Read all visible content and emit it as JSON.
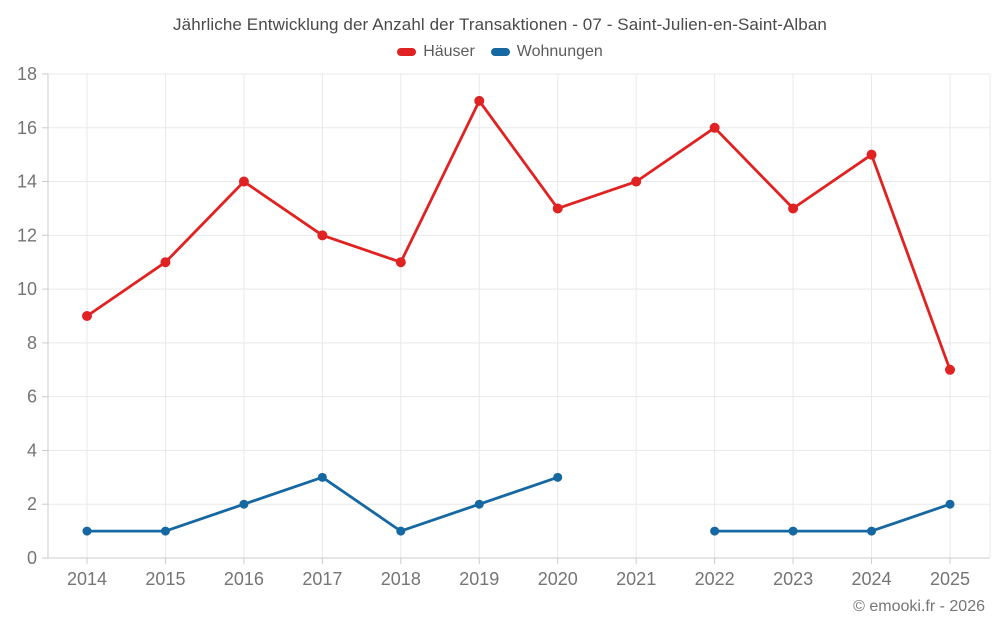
{
  "title": "Jährliche Entwicklung der Anzahl der Transaktionen - 07 - Saint-Julien-en-Saint-Alban",
  "footer": "© emooki.fr - 2026",
  "chart_data": {
    "type": "line",
    "title": "Jährliche Entwicklung der Anzahl der Transaktionen - 07 - Saint-Julien-en-Saint-Alban",
    "categories": [
      "2014",
      "2015",
      "2016",
      "2017",
      "2018",
      "2019",
      "2020",
      "2021",
      "2022",
      "2023",
      "2024",
      "2025"
    ],
    "series": [
      {
        "name": "Häuser",
        "color": "#e02322",
        "marker_radius": 5,
        "values": [
          9,
          11,
          14,
          12,
          11,
          17,
          13,
          14,
          16,
          13,
          15,
          7
        ]
      },
      {
        "name": "Wohnungen",
        "color": "#1568a1",
        "marker_radius": 4.5,
        "values": [
          1,
          1,
          2,
          3,
          1,
          2,
          3,
          null,
          1,
          1,
          1,
          2
        ]
      }
    ],
    "xlabel": "",
    "ylabel": "",
    "ylim": [
      0,
      18
    ],
    "ytick_step": 2,
    "grid": true,
    "legend_position": "top"
  },
  "colors": {
    "grid": "#e9e9e9",
    "axis": "#cccccc",
    "tick_label": "#757575",
    "title_text": "#4a4a4a",
    "legend_text": "#5c5c5c",
    "background": "#ffffff"
  }
}
